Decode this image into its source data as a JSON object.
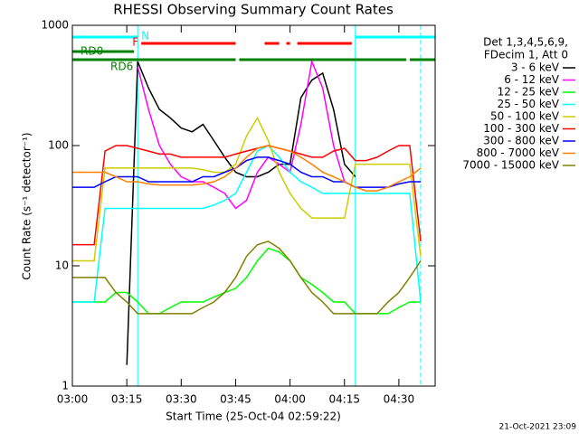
{
  "chart_data": {
    "type": "line",
    "title": "RHESSI Observing Summary Count Rates",
    "x_label": "Start Time (25-Oct-04 02:59:22)",
    "y_label": "Count Rate (s⁻¹ detector⁻¹)",
    "footer": "21-Oct-2021 23:09",
    "legend_title": [
      "Det 1,3,4,5,6,9,",
      "FDecim 1, Att 0"
    ],
    "legend": "right",
    "log_y": true,
    "x": [
      "03:00",
      "03:03",
      "03:06",
      "03:09",
      "03:12",
      "03:15",
      "03:18",
      "03:21",
      "03:24",
      "03:27",
      "03:30",
      "03:33",
      "03:36",
      "03:39",
      "03:42",
      "03:45",
      "03:48",
      "03:51",
      "03:54",
      "03:57",
      "04:00",
      "04:03",
      "04:06",
      "04:09",
      "04:12",
      "04:15",
      "04:18",
      "04:21",
      "04:24",
      "04:27",
      "04:30",
      "04:33",
      "04:36"
    ],
    "xlim": [
      "03:00",
      "04:40"
    ],
    "xticks": [
      "03:00",
      "03:15",
      "03:30",
      "03:45",
      "04:00",
      "04:15",
      "04:30"
    ],
    "ylim": [
      1,
      1000
    ],
    "yticks": [
      1,
      10,
      100,
      1000
    ],
    "series": [
      {
        "name": "3 - 6 keV",
        "color": "#000000",
        "values": [
          null,
          null,
          null,
          null,
          null,
          1.5,
          500,
          300,
          200,
          170,
          140,
          130,
          150,
          110,
          80,
          60,
          55,
          55,
          60,
          70,
          70,
          250,
          350,
          400,
          200,
          70,
          55,
          null,
          null,
          null,
          null,
          null,
          null
        ]
      },
      {
        "name": "6 - 12 keV",
        "color": "#ff00ff",
        "values": [
          null,
          null,
          null,
          null,
          null,
          null,
          450,
          200,
          100,
          70,
          55,
          50,
          50,
          45,
          40,
          30,
          35,
          60,
          80,
          70,
          60,
          150,
          500,
          300,
          100,
          50,
          45,
          null,
          null,
          null,
          null,
          null,
          null
        ]
      },
      {
        "name": "12 - 25 keV",
        "color": "#00ff00",
        "values": [
          5,
          5,
          5,
          5,
          6,
          6,
          5,
          4,
          4,
          4.5,
          5,
          5,
          5,
          5.5,
          6,
          6.5,
          8,
          11,
          14,
          13,
          11,
          8,
          7,
          6,
          5,
          5,
          4,
          4,
          4,
          4,
          4.5,
          5,
          5
        ]
      },
      {
        "name": "25 - 50 keV",
        "color": "#00ffff",
        "values": [
          5,
          5,
          5,
          30,
          30,
          30,
          30,
          30,
          30,
          30,
          30,
          30,
          30,
          32,
          35,
          40,
          60,
          90,
          100,
          80,
          60,
          50,
          45,
          40,
          40,
          40,
          40,
          40,
          40,
          40,
          40,
          40,
          5
        ]
      },
      {
        "name": "50 - 100 keV",
        "color": "#cccc00",
        "values": [
          11,
          11,
          11,
          65,
          65,
          65,
          65,
          65,
          65,
          65,
          65,
          65,
          63,
          60,
          60,
          70,
          120,
          170,
          110,
          60,
          40,
          30,
          25,
          25,
          25,
          25,
          70,
          70,
          70,
          70,
          70,
          70,
          12
        ]
      },
      {
        "name": "100 - 300 keV",
        "color": "#ff0000",
        "values": [
          15,
          15,
          15,
          90,
          100,
          100,
          95,
          90,
          85,
          85,
          80,
          80,
          80,
          80,
          80,
          85,
          90,
          95,
          100,
          95,
          90,
          85,
          80,
          80,
          90,
          95,
          75,
          75,
          80,
          90,
          100,
          100,
          16
        ]
      },
      {
        "name": "300 - 800 keV",
        "color": "#0000ff",
        "values": [
          45,
          45,
          45,
          50,
          55,
          55,
          55,
          50,
          50,
          50,
          50,
          50,
          55,
          55,
          60,
          65,
          75,
          80,
          80,
          75,
          70,
          60,
          55,
          55,
          50,
          50,
          45,
          45,
          45,
          45,
          48,
          50,
          50
        ]
      },
      {
        "name": "800 - 7000 keV",
        "color": "#ff8000",
        "values": [
          60,
          60,
          60,
          60,
          55,
          50,
          50,
          48,
          47,
          47,
          47,
          47,
          48,
          50,
          55,
          65,
          80,
          95,
          100,
          95,
          90,
          80,
          70,
          60,
          55,
          50,
          45,
          42,
          42,
          45,
          50,
          55,
          65
        ]
      },
      {
        "name": "7000 - 15000 keV",
        "color": "#808000",
        "values": [
          8,
          8,
          8,
          8,
          6,
          5,
          4,
          4,
          4,
          4,
          4,
          4,
          4.5,
          5,
          6,
          8,
          12,
          15,
          16,
          14,
          11,
          8,
          6,
          5,
          4,
          4,
          4,
          4,
          4,
          5,
          6,
          8,
          11
        ]
      }
    ],
    "flags": [
      {
        "label": "N",
        "color": "#00ffff",
        "segments": [
          [
            "03:00",
            "03:18"
          ],
          [
            "04:18",
            "04:40"
          ]
        ]
      },
      {
        "label": "F",
        "color": "#ff0000",
        "segments": [
          [
            "03:19",
            "03:45"
          ],
          [
            "03:53",
            "03:57"
          ],
          [
            "03:59",
            "04:00"
          ],
          [
            "04:02",
            "04:17"
          ]
        ]
      },
      {
        "label": "RD0",
        "color": "#008000",
        "segments": [
          [
            "03:00",
            "03:17"
          ]
        ]
      },
      {
        "label": "RD6",
        "color": "#008000",
        "segments": [
          [
            "03:00",
            "03:45"
          ],
          [
            "03:46",
            "04:32"
          ],
          [
            "04:33",
            "04:40"
          ]
        ]
      }
    ],
    "night_lines": [
      {
        "x": "03:18",
        "style": "solid"
      },
      {
        "x": "04:18",
        "style": "solid"
      },
      {
        "x": "04:36",
        "style": "dashed"
      }
    ],
    "night_color": "#00ffff"
  }
}
